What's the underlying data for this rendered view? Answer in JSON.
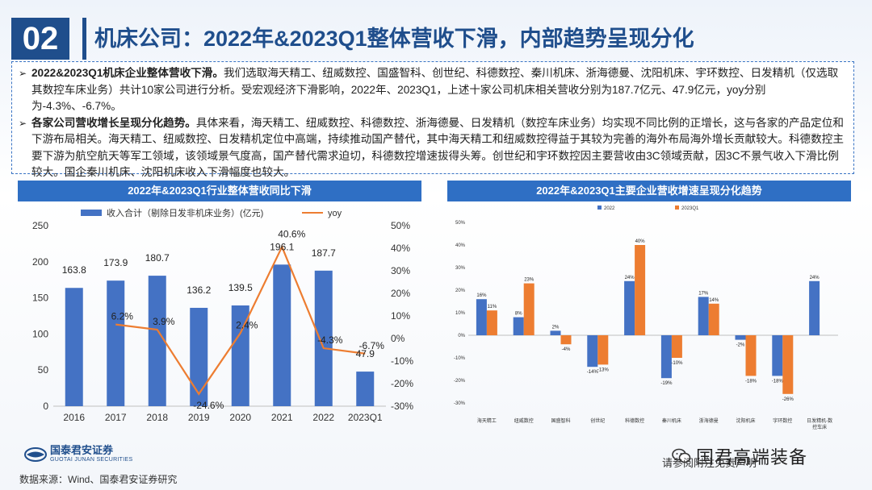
{
  "header": {
    "number": "02",
    "title": "机床公司：2022年&2023Q1整体营收下滑，内部趋势呈现分化"
  },
  "summary": {
    "items": [
      {
        "bold": "2022&2023Q1机床企业整体营收下滑。",
        "text": "我们选取海天精工、纽威数控、国盛智科、创世纪、科德数控、秦川机床、浙海德曼、沈阳机床、宇环数控、日发精机（仅选取其数控车床业务）共计10家公司进行分析。受宏观经济下滑影响，2022年、2023Q1，上述十家公司机床相关营收分别为187.7亿元、47.9亿元，yoy分别为-4.3%、-6.7%。"
      },
      {
        "bold": "各家公司营收增长呈现分化趋势。",
        "text": "具体来看，海天精工、纽威数控、科德数控、浙海德曼、日发精机（数控车床业务）均实现不同比例的正增长，这与各家的产品定位和下游布局相关。海天精工、纽威数控、日发精机定位中高端，持续推动国产替代，其中海天精工和纽威数控得益于其较为完善的海外布局海外增长贡献较大。科德数控主要下游为航空航天等军工领域，该领域景气度高，国产替代需求迫切，科德数控增速拔得头筹。创世纪和宇环数控因主要营收由3C领域贡献，因3C不景气收入下滑比例较大。国企秦川机床、沈阳机床收入下滑幅度也较大。"
      }
    ]
  },
  "left_chart_title": "2022年&2023Q1行业整体营收同比下滑",
  "right_chart_title": "2022年&2023Q1主要企业营收增速呈现分化趋势",
  "chart_data": [
    {
      "type": "bar",
      "title": "2022年&2023Q1行业整体营收同比下滑",
      "categories": [
        "2016",
        "2017",
        "2018",
        "2019",
        "2020",
        "2021",
        "2022",
        "2023Q1"
      ],
      "series": [
        {
          "name": "收入合计（剔除日发非机床业务）(亿元)",
          "type": "bar",
          "axis": "left",
          "color": "#4472c4",
          "values": [
            163.8,
            173.9,
            180.7,
            136.2,
            139.5,
            196.1,
            187.7,
            47.9
          ],
          "labels": [
            "163.8",
            "173.9",
            "180.7",
            "136.2",
            "139.5",
            "196.1",
            "187.7",
            "47.9"
          ]
        },
        {
          "name": "yoy",
          "type": "line",
          "axis": "right",
          "color": "#ed7d31",
          "values": [
            null,
            6.2,
            3.9,
            -24.6,
            2.4,
            40.6,
            -4.3,
            -6.7
          ],
          "labels": [
            "",
            "6.2%",
            "3.9%",
            "-24.6%",
            "2.4%",
            "40.6%",
            "-4.3%",
            "-6.7%"
          ]
        }
      ],
      "ylim_left": [
        0,
        250
      ],
      "yticks_left": [
        "0",
        "50",
        "100",
        "150",
        "200",
        "250"
      ],
      "ylim_right": [
        -30,
        50
      ],
      "yticks_right": [
        "-30%",
        "-20%",
        "-10%",
        "0%",
        "10%",
        "20%",
        "30%",
        "40%",
        "50%"
      ]
    },
    {
      "type": "bar",
      "title": "2022年&2023Q1主要企业营收增速呈现分化趋势",
      "categories": [
        "海天精工",
        "纽威数控",
        "国盛智科",
        "创世纪",
        "科德数控",
        "秦川机床",
        "浙海德曼",
        "沈阳机床",
        "宇环数控",
        "日发精机-数控车床"
      ],
      "series": [
        {
          "name": "2022",
          "color": "#4472c4",
          "values": [
            16,
            8,
            2,
            -14,
            24,
            -19,
            17,
            -2,
            -18,
            24
          ],
          "labels": [
            "16%",
            "8%",
            "2%",
            "-14%",
            "24%",
            "-19%",
            "17%",
            "-2%",
            "-18%",
            "24%"
          ]
        },
        {
          "name": "2023Q1",
          "color": "#ed7d31",
          "values": [
            11,
            23,
            -4,
            -13,
            40,
            -10,
            14,
            -18,
            -26,
            null
          ],
          "labels": [
            "11%",
            "23%",
            "-4%",
            "-13%",
            "40%",
            "-10%",
            "14%",
            "-18%",
            "-26%",
            ""
          ]
        }
      ],
      "ylim": [
        -30,
        50
      ],
      "yticks": [
        "-30%",
        "-20%",
        "-10%",
        "0%",
        "10%",
        "20%",
        "30%",
        "40%",
        "50%"
      ]
    }
  ],
  "footer": {
    "logo_cn": "国泰君安证券",
    "logo_en": "GUOTAI JUNAN SECURITIES",
    "source": "数据来源：Wind、国泰君安证券研究",
    "watermark": "国君高端装备",
    "watermark_sub": "请参阅附注免责声明"
  }
}
